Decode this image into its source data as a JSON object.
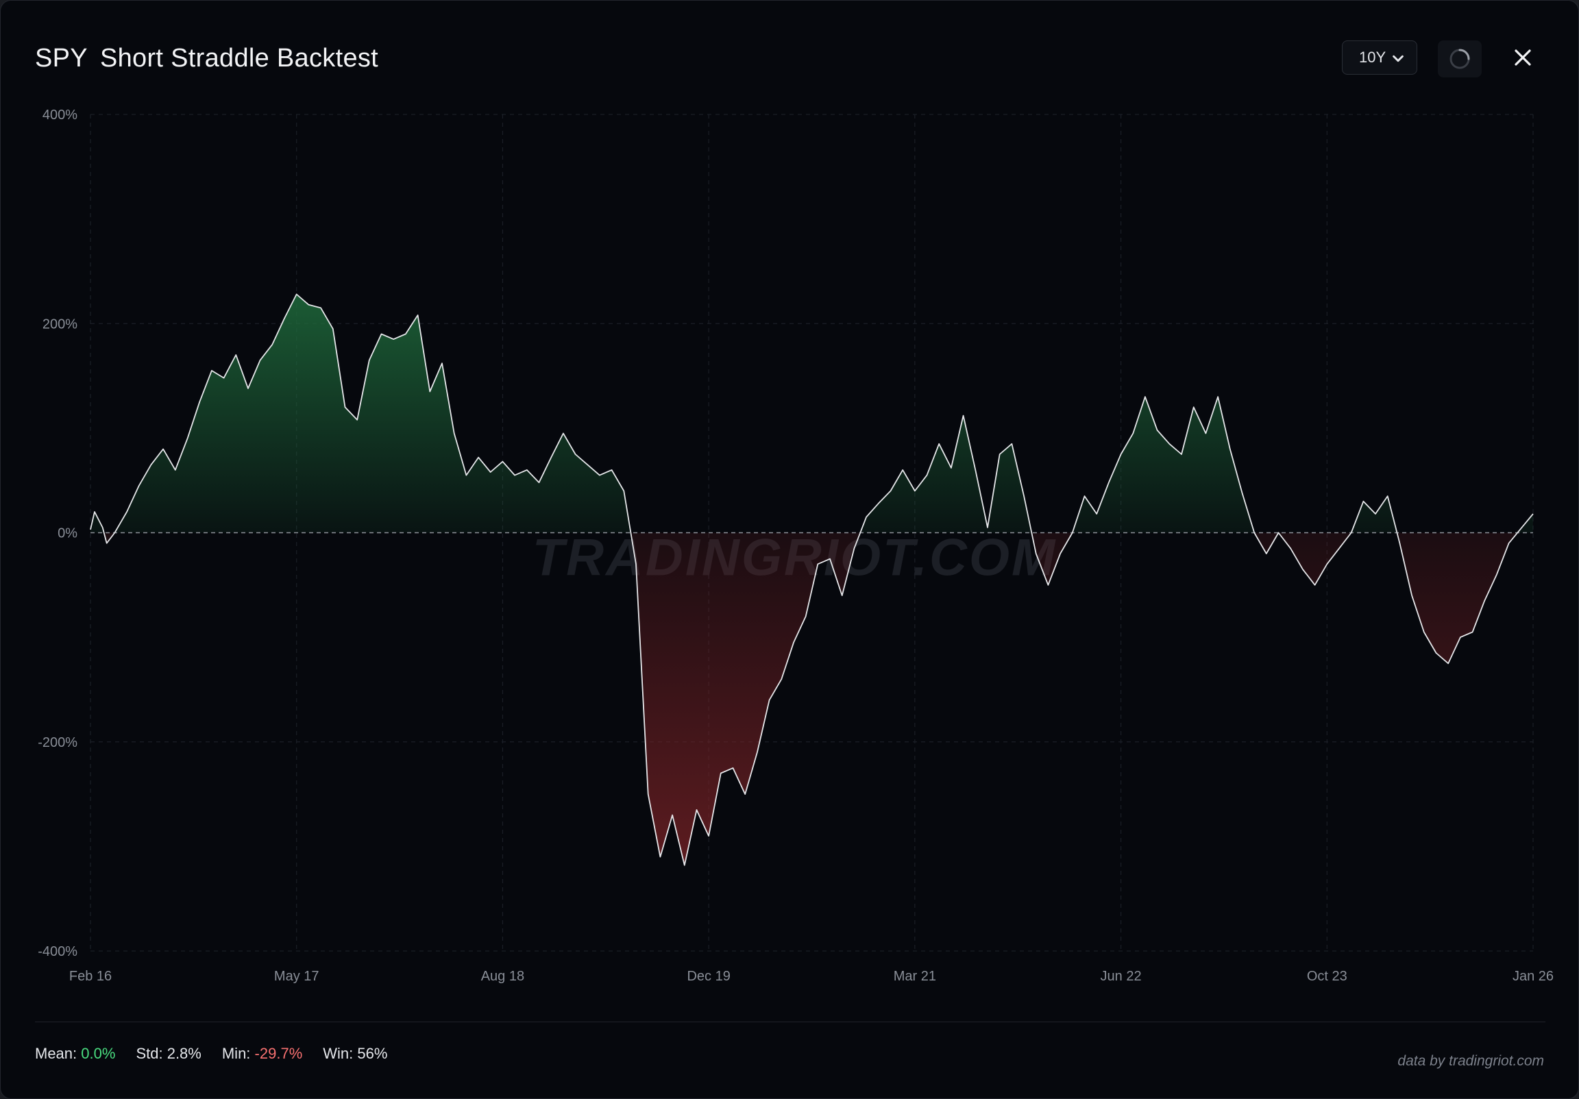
{
  "header": {
    "ticker": "SPY",
    "title": "Short Straddle Backtest",
    "period_value": "10Y"
  },
  "icons": {
    "dropdown": "chevron-down-icon",
    "refresh": "spinner-icon",
    "close": "close-icon"
  },
  "colors": {
    "positive": "#4ade80",
    "negative": "#f87171",
    "positive_fill": "#1f6b3c",
    "negative_fill": "#7a2226",
    "line": "#e6e7ea",
    "background": "#06080d"
  },
  "watermark": "TRADINGRIOT.COM",
  "chart_data": {
    "type": "area",
    "x_ticks": [
      "Feb 16",
      "May 17",
      "Aug 18",
      "Dec 19",
      "Mar 21",
      "Jun 22",
      "Oct 23",
      "Jan 26"
    ],
    "y_ticks": [
      "400%",
      "200%",
      "0%",
      "-200%",
      "-400%"
    ],
    "ylim": [
      -400,
      400
    ],
    "x_range": [
      "2016-02",
      "2026-01"
    ],
    "grid": true,
    "zero_line": true,
    "series": [
      {
        "points": [
          [
            "2016-02",
            3
          ],
          [
            "2016-02",
            20
          ],
          [
            "2016-03",
            5
          ],
          [
            "2016-03",
            -10
          ],
          [
            "2016-04",
            0
          ],
          [
            "2016-05",
            20
          ],
          [
            "2016-06",
            45
          ],
          [
            "2016-07",
            65
          ],
          [
            "2016-08",
            80
          ],
          [
            "2016-09",
            60
          ],
          [
            "2016-10",
            90
          ],
          [
            "2016-11",
            125
          ],
          [
            "2016-12",
            155
          ],
          [
            "2017-01",
            148
          ],
          [
            "2017-02",
            170
          ],
          [
            "2017-03",
            138
          ],
          [
            "2017-04",
            165
          ],
          [
            "2017-05",
            180
          ],
          [
            "2017-06",
            205
          ],
          [
            "2017-07",
            228
          ],
          [
            "2017-08",
            218
          ],
          [
            "2017-09",
            215
          ],
          [
            "2017-10",
            195
          ],
          [
            "2017-11",
            120
          ],
          [
            "2017-12",
            108
          ],
          [
            "2018-01",
            165
          ],
          [
            "2018-02",
            190
          ],
          [
            "2018-03",
            185
          ],
          [
            "2018-04",
            190
          ],
          [
            "2018-05",
            208
          ],
          [
            "2018-06",
            135
          ],
          [
            "2018-07",
            162
          ],
          [
            "2018-08",
            95
          ],
          [
            "2018-09",
            55
          ],
          [
            "2018-10",
            72
          ],
          [
            "2018-11",
            58
          ],
          [
            "2018-12",
            68
          ],
          [
            "2019-01",
            55
          ],
          [
            "2019-02",
            60
          ],
          [
            "2019-03",
            48
          ],
          [
            "2019-04",
            72
          ],
          [
            "2019-05",
            95
          ],
          [
            "2019-06",
            75
          ],
          [
            "2019-07",
            65
          ],
          [
            "2019-08",
            55
          ],
          [
            "2019-09",
            60
          ],
          [
            "2019-10",
            40
          ],
          [
            "2019-11",
            -30
          ],
          [
            "2019-12",
            -250
          ],
          [
            "2020-01",
            -310
          ],
          [
            "2020-02",
            -270
          ],
          [
            "2020-03",
            -318
          ],
          [
            "2020-04",
            -265
          ],
          [
            "2020-05",
            -290
          ],
          [
            "2020-06",
            -230
          ],
          [
            "2020-07",
            -225
          ],
          [
            "2020-08",
            -250
          ],
          [
            "2020-09",
            -210
          ],
          [
            "2020-10",
            -160
          ],
          [
            "2020-11",
            -140
          ],
          [
            "2020-12",
            -105
          ],
          [
            "2021-01",
            -80
          ],
          [
            "2021-02",
            -30
          ],
          [
            "2021-03",
            -25
          ],
          [
            "2021-04",
            -60
          ],
          [
            "2021-05",
            -15
          ],
          [
            "2021-06",
            15
          ],
          [
            "2021-07",
            28
          ],
          [
            "2021-08",
            40
          ],
          [
            "2021-09",
            60
          ],
          [
            "2021-10",
            40
          ],
          [
            "2021-11",
            55
          ],
          [
            "2021-12",
            85
          ],
          [
            "2022-01",
            62
          ],
          [
            "2022-02",
            112
          ],
          [
            "2022-03",
            60
          ],
          [
            "2022-04",
            5
          ],
          [
            "2022-05",
            75
          ],
          [
            "2022-06",
            85
          ],
          [
            "2022-07",
            35
          ],
          [
            "2022-08",
            -20
          ],
          [
            "2022-09",
            -50
          ],
          [
            "2022-10",
            -20
          ],
          [
            "2022-11",
            0
          ],
          [
            "2022-12",
            35
          ],
          [
            "2023-01",
            18
          ],
          [
            "2023-02",
            48
          ],
          [
            "2023-03",
            75
          ],
          [
            "2023-04",
            95
          ],
          [
            "2023-05",
            130
          ],
          [
            "2023-06",
            98
          ],
          [
            "2023-07",
            85
          ],
          [
            "2023-08",
            75
          ],
          [
            "2023-09",
            120
          ],
          [
            "2023-10",
            95
          ],
          [
            "2023-11",
            130
          ],
          [
            "2023-12",
            80
          ],
          [
            "2024-01",
            38
          ],
          [
            "2024-02",
            0
          ],
          [
            "2024-03",
            -20
          ],
          [
            "2024-04",
            0
          ],
          [
            "2024-05",
            -15
          ],
          [
            "2024-06",
            -35
          ],
          [
            "2024-07",
            -50
          ],
          [
            "2024-08",
            -30
          ],
          [
            "2024-09",
            -15
          ],
          [
            "2024-10",
            0
          ],
          [
            "2024-11",
            30
          ],
          [
            "2024-12",
            18
          ],
          [
            "2025-01",
            35
          ],
          [
            "2025-02",
            -10
          ],
          [
            "2025-03",
            -60
          ],
          [
            "2025-04",
            -95
          ],
          [
            "2025-05",
            -115
          ],
          [
            "2025-06",
            -125
          ],
          [
            "2025-07",
            -100
          ],
          [
            "2025-08",
            -95
          ],
          [
            "2025-09",
            -65
          ],
          [
            "2025-10",
            -40
          ],
          [
            "2025-11",
            -10
          ],
          [
            "2026-01",
            18
          ]
        ]
      }
    ]
  },
  "stats": {
    "mean_label": "Mean:",
    "mean_value": "0.0%",
    "std_label": "Std:",
    "std_value": "2.8%",
    "min_label": "Min:",
    "min_value": "-29.7%",
    "win_label": "Win:",
    "win_value": "56%"
  },
  "credit": "data by tradingriot.com"
}
